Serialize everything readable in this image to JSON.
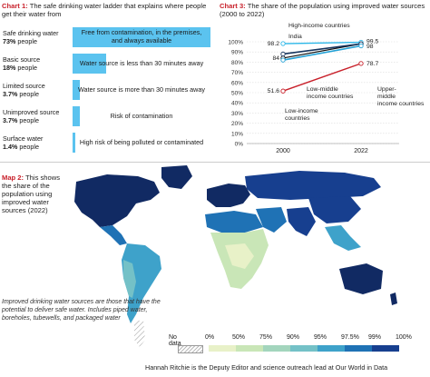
{
  "colors": {
    "accent": "#c8202a",
    "bar": "#5bc3ef",
    "high": "#2bb7e8",
    "upper_middle": "#17365f",
    "low_middle": "#24a2d6",
    "low": "#c8202a",
    "map_scale": [
      "#e8f1c8",
      "#c9e6b7",
      "#a3d5bd",
      "#74c1c7",
      "#3ea2ca",
      "#1f72b5",
      "#173f8f",
      "#112a63"
    ]
  },
  "chart1": {
    "title_lead": "Chart 1:",
    "title_rest": "The safe drinking water ladder that explains where people get their water from",
    "rows": [
      {
        "label": "Safe drinking water",
        "pct_text": "73%",
        "suffix": " people",
        "value": 73,
        "desc": "Free from contamination, in the premises, and always available"
      },
      {
        "label": "Basic source",
        "pct_text": "18%",
        "suffix": " people",
        "value": 18,
        "desc": "Water source is less than 30 minutes away"
      },
      {
        "label": "Limited source",
        "pct_text": "3.7%",
        "suffix": " people",
        "value": 3.7,
        "desc": "Water source is more than 30 minutes away"
      },
      {
        "label": "Unimproved source",
        "pct_text": "3.7%",
        "suffix": " people",
        "value": 3.7,
        "desc": "Risk of contamination"
      },
      {
        "label": "Surface water",
        "pct_text": "1.4%",
        "suffix": " people",
        "value": 1.4,
        "desc": "High risk of being polluted or contaminated"
      }
    ]
  },
  "chart_data": [
    {
      "type": "bar",
      "title": "The safe drinking water ladder that explains where people get their water from",
      "categories": [
        "Safe drinking water",
        "Basic source",
        "Limited source",
        "Unimproved source",
        "Surface water"
      ],
      "values": [
        73,
        18,
        3.7,
        3.7,
        1.4
      ],
      "unit": "% people"
    },
    {
      "type": "line",
      "title": "The share of the population using improved water sources (2000 to 2022)",
      "x": [
        "2000",
        "2022"
      ],
      "ylim": [
        0,
        100
      ],
      "yticks": [
        "0%",
        "10%",
        "20%",
        "30%",
        "40%",
        "50%",
        "60%",
        "70%",
        "80%",
        "90%",
        "100%"
      ],
      "series": [
        {
          "name": "High-income countries",
          "values": [
            98.2,
            99.5
          ],
          "labels": [
            "98.2",
            "99.5"
          ]
        },
        {
          "name": "India",
          "values": [
            84,
            98
          ],
          "labels": [
            "84",
            "98"
          ]
        },
        {
          "name": "Upper-middle income countries",
          "values": [
            88,
            98
          ],
          "labels": [
            "",
            ""
          ]
        },
        {
          "name": "Low-middle income countries",
          "values": [
            82,
            96
          ],
          "labels": [
            "",
            ""
          ]
        },
        {
          "name": "Low-income countries",
          "values": [
            51.6,
            78.7
          ],
          "labels": [
            "51.6",
            "78.7"
          ]
        }
      ]
    },
    {
      "type": "heatmap",
      "title": "This shows the share of the population using improved water sources (2022)",
      "legend": [
        "No data",
        "0%",
        "50%",
        "75%",
        "90%",
        "95%",
        "97.5%",
        "99%",
        "100%"
      ]
    }
  ],
  "chart3": {
    "title_lead": "Chart 3:",
    "title_rest": "The share of the population using improved water sources (2000 to 2022)",
    "x_labels": [
      "2000",
      "2022"
    ],
    "series_labels": {
      "high": "High-income countries",
      "india": "India",
      "low_middle": "Low-middle income countries",
      "upper_middle": "Upper-middle income countries",
      "low": "Low-income countries"
    }
  },
  "map": {
    "title_lead": "Map 2:",
    "title_rest": "This shows the share of the population using improved water sources (2022)",
    "note": "Improved drinking water sources are those that have the potential to deliver safe water. Includes piped water, boreholes, tubewells, and packaged water",
    "legend_nodata": "No data",
    "legend_ticks": [
      "0%",
      "50%",
      "75%",
      "90%",
      "95%",
      "97.5%",
      "99%",
      "100%"
    ]
  },
  "footer": "Hannah Ritchie is the Deputy Editor and science outreach lead at Our World in Data"
}
